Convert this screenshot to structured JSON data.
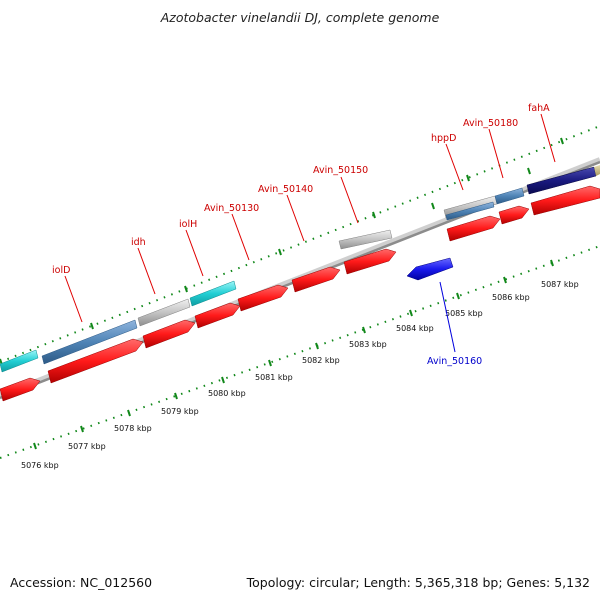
{
  "title": "Azotobacter vinelandii DJ, complete genome",
  "footer": {
    "accession": "Accession: NC_012560",
    "topology": "Topology: circular; Length: 5,365,318 bp; Genes: 5,132"
  },
  "colors": {
    "forward_cds": "#ff1a1a",
    "reverse_cds": "#1a1aee",
    "steelblue_feature": "#4f84b6",
    "cyan_feature": "#22cfd4",
    "grey_feature": "#bdbdbd",
    "navy_feature": "#1a1a80",
    "tick_green": "#11881a",
    "backbone": "#909090",
    "label_forward": "#cc0000",
    "label_reverse": "#0000cc"
  },
  "diagram": {
    "scale_labels": [
      "5076 kbp",
      "5077 kbp",
      "5078 kbp",
      "5079 kbp",
      "5080 kbp",
      "5081 kbp",
      "5082 kbp",
      "5083 kbp",
      "5084 kbp",
      "5085 kbp",
      "5086 kbp",
      "5087 kbp"
    ],
    "gene_labels": [
      {
        "name": "iolD",
        "strand": "forward"
      },
      {
        "name": "idh",
        "strand": "forward"
      },
      {
        "name": "iolH",
        "strand": "forward"
      },
      {
        "name": "Avin_50130",
        "strand": "forward"
      },
      {
        "name": "Avin_50140",
        "strand": "forward"
      },
      {
        "name": "Avin_50150",
        "strand": "forward"
      },
      {
        "name": "hppD",
        "strand": "forward"
      },
      {
        "name": "Avin_50180",
        "strand": "forward"
      },
      {
        "name": "fahA",
        "strand": "forward"
      },
      {
        "name": "Avin_50160",
        "strand": "reverse"
      }
    ]
  }
}
